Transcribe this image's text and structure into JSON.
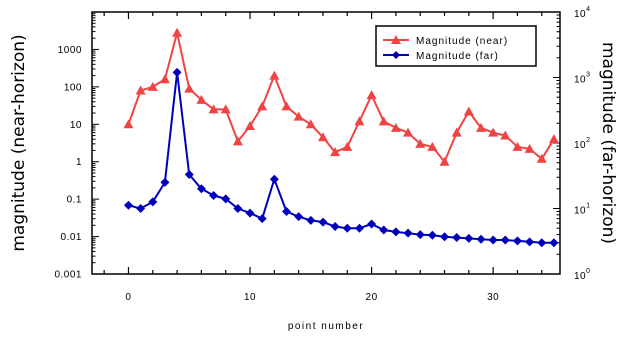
{
  "chart_data": {
    "type": "line",
    "xlabel": "point number",
    "ylabel_left": "magnitude (near-horizon)",
    "ylabel_right": "magnitude (far-horizon)",
    "xlim": [
      -3,
      35.5
    ],
    "ylim_left": [
      0.001,
      10000
    ],
    "ylim_right": [
      1,
      10000
    ],
    "yscale": "log",
    "grid": false,
    "legend_position": "top-right",
    "x_ticks": [
      0,
      10,
      20,
      30
    ],
    "y_left_ticks": [
      {
        "value": 0.001,
        "label": "0.001"
      },
      {
        "value": 0.01,
        "label": "0.01"
      },
      {
        "value": 0.1,
        "label": "0.1"
      },
      {
        "value": 1,
        "label": "1"
      },
      {
        "value": 10,
        "label": "10"
      },
      {
        "value": 100,
        "label": "100"
      },
      {
        "value": 1000,
        "label": "1000"
      }
    ],
    "y_right_ticks": [
      {
        "value": 1,
        "base": "10",
        "exp": "0"
      },
      {
        "value": 10,
        "base": "10",
        "exp": "1"
      },
      {
        "value": 100,
        "base": "10",
        "exp": "2"
      },
      {
        "value": 1000,
        "base": "10",
        "exp": "3"
      },
      {
        "value": 10000,
        "base": "10",
        "exp": "4"
      }
    ],
    "series": [
      {
        "name": "Magnitude (near)",
        "axis": "left",
        "color": "#ee4444",
        "marker": "triangle",
        "x": [
          0,
          1,
          2,
          3,
          4,
          5,
          6,
          7,
          8,
          9,
          10,
          11,
          12,
          13,
          14,
          15,
          16,
          17,
          18,
          19,
          20,
          21,
          22,
          23,
          24,
          25,
          26,
          27,
          28,
          29,
          30,
          31,
          32,
          33,
          34,
          35
        ],
        "values": [
          10,
          80,
          100,
          160,
          2800,
          90,
          45,
          25,
          25,
          3.5,
          9,
          30,
          200,
          30,
          16,
          10,
          4.5,
          1.8,
          2.5,
          12,
          60,
          12,
          8,
          6,
          3,
          2.5,
          1,
          6,
          22,
          8,
          6,
          5,
          2.5,
          2.2,
          1.2,
          4
        ]
      },
      {
        "name": "Magnitude (far)",
        "axis": "right",
        "color": "#0000bb",
        "marker": "diamond",
        "x": [
          0,
          1,
          2,
          3,
          4,
          5,
          6,
          7,
          8,
          9,
          10,
          11,
          12,
          13,
          14,
          15,
          16,
          17,
          18,
          19,
          20,
          21,
          22,
          23,
          24,
          25,
          26,
          27,
          28,
          29,
          30,
          31,
          32,
          33,
          34,
          35
        ],
        "values": [
          11.2,
          10,
          12.6,
          25,
          1200,
          33,
          20,
          15.8,
          14,
          10,
          8.5,
          7,
          28,
          9,
          7.5,
          6.6,
          6.2,
          5.3,
          5,
          5,
          5.8,
          4.7,
          4.4,
          4.2,
          4,
          3.9,
          3.7,
          3.6,
          3.5,
          3.4,
          3.3,
          3.3,
          3.2,
          3.1,
          3,
          3
        ]
      }
    ]
  }
}
